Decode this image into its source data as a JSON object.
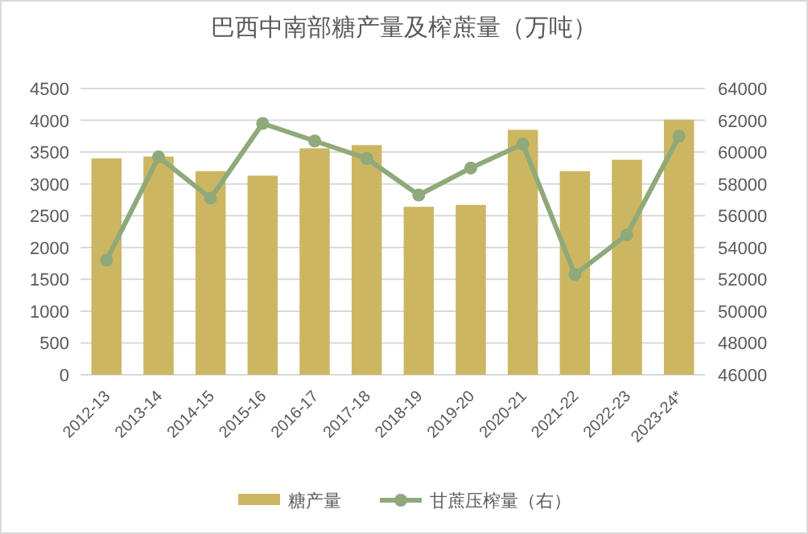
{
  "chart_data": {
    "type": "bar",
    "title": "巴西中南部糖产量及榨蔗量（万吨）",
    "categories": [
      "2012-13",
      "2013-14",
      "2014-15",
      "2015-16",
      "2016-17",
      "2017-18",
      "2018-19",
      "2019-20",
      "2020-21",
      "2021-22",
      "2022-23",
      "2023-24*"
    ],
    "series": [
      {
        "name": "糖产量",
        "color": "#ccb662",
        "values": [
          3400,
          3430,
          3200,
          3130,
          3560,
          3610,
          2640,
          2670,
          3850,
          3200,
          3380,
          4010
        ]
      },
      {
        "name": "甘蔗压榨量（右）",
        "type": "line",
        "axis": "y2",
        "color": "#8fa97a",
        "marker": "circle",
        "values": [
          53200,
          59700,
          57100,
          61800,
          60700,
          59600,
          57300,
          59000,
          60500,
          52300,
          54800,
          61000
        ]
      }
    ],
    "ylim": [
      0,
      4500
    ],
    "yticks": [
      0,
      500,
      1000,
      1500,
      2000,
      2500,
      3000,
      3500,
      4000,
      4500
    ],
    "y2lim": [
      46000,
      64000
    ],
    "y2ticks": [
      46000,
      48000,
      50000,
      52000,
      54000,
      56000,
      58000,
      60000,
      62000,
      64000
    ],
    "grid": "y",
    "legend": "bottom"
  }
}
